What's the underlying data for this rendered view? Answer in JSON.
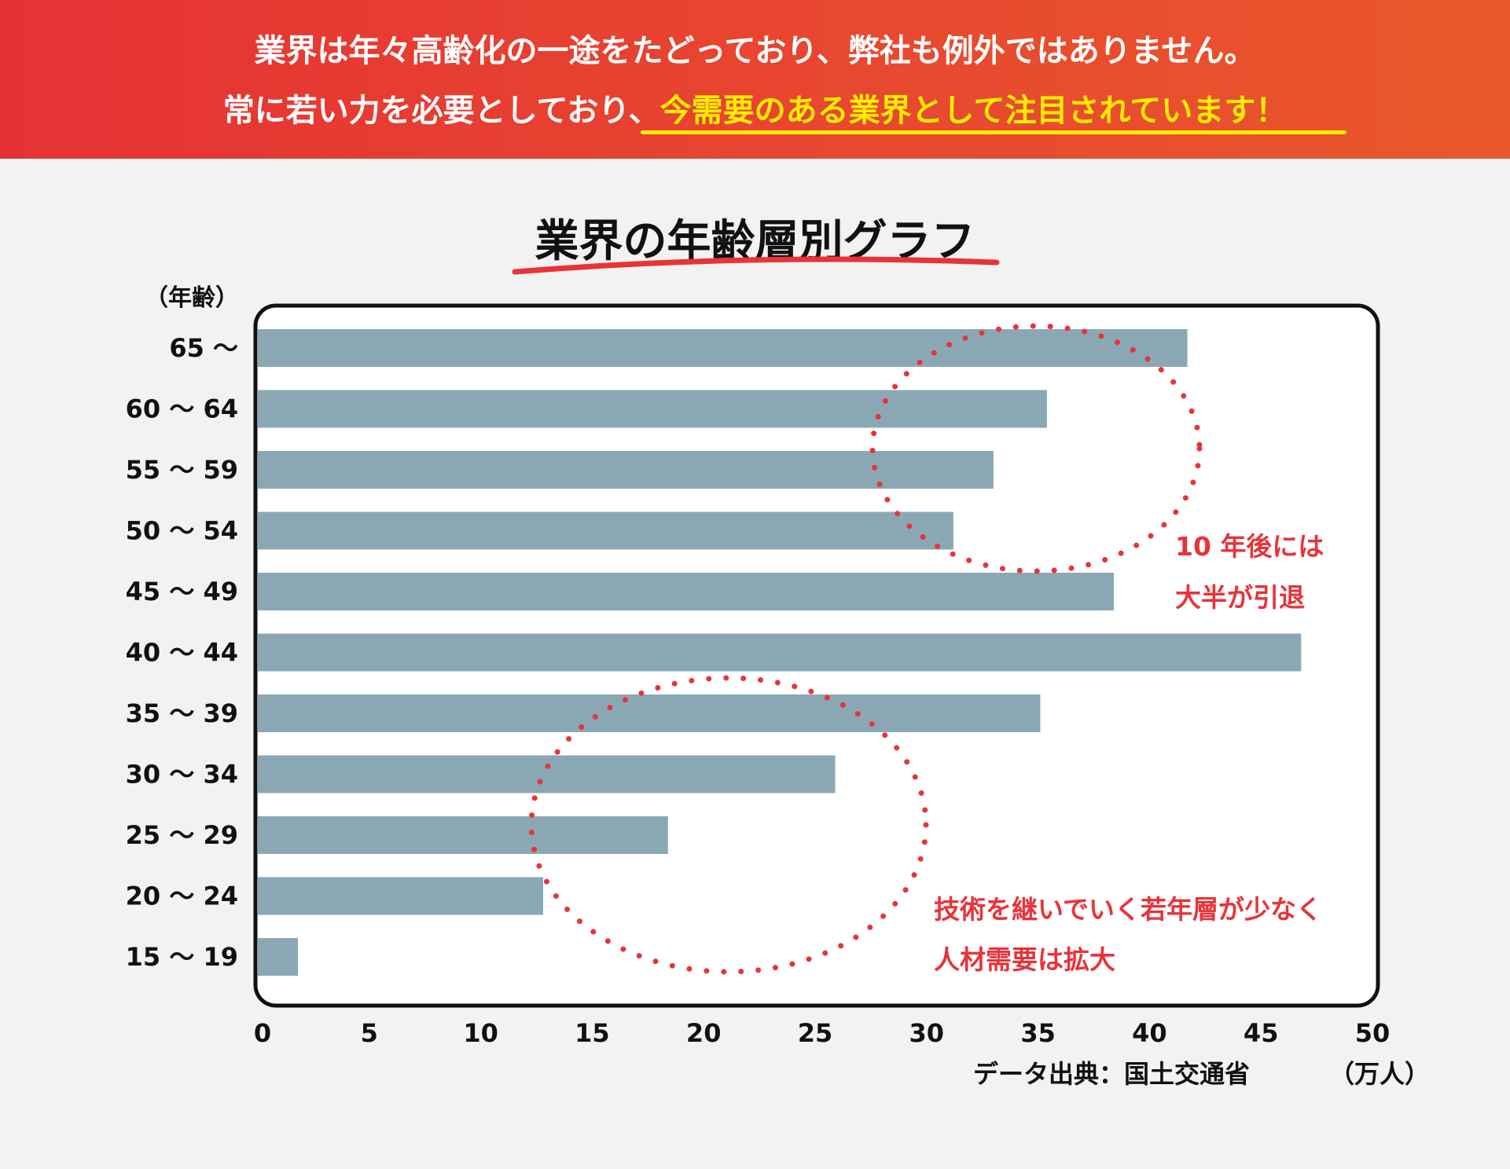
{
  "header": {
    "line1": "業界は年々高齢化の一途をたどっており、弊社も例外ではありません。",
    "line2_plain": "常に若い力を必要としており、",
    "line2_highlight": "今需要のある業界として注目されています！"
  },
  "colors": {
    "header_start": "#e63234",
    "header_end": "#e9582c",
    "highlight": "#ffec00",
    "bar": "#8aa8b4",
    "accent": "#e8333a"
  },
  "chart_data": {
    "type": "bar",
    "orientation": "horizontal",
    "title": "業界の年齢層別グラフ",
    "ylabel": "（年齢）",
    "xlabel": "（万人）",
    "xlim": [
      0,
      50
    ],
    "xticks": [
      "0",
      "5",
      "10",
      "15",
      "20",
      "25",
      "30",
      "35",
      "40",
      "45",
      "50"
    ],
    "categories": [
      "65 〜",
      "60 〜 64",
      "55 〜 59",
      "50 〜 54",
      "45 〜 49",
      "40 〜 44",
      "35 〜 39",
      "30 〜 34",
      "25 〜 29",
      "20 〜 24",
      "15 〜 19"
    ],
    "values": [
      41.7,
      35.4,
      33.0,
      31.2,
      38.4,
      46.8,
      35.1,
      25.9,
      18.4,
      12.8,
      1.8
    ],
    "source": "データ出典：国土交通省",
    "annotations": [
      {
        "lines": [
          "10 年後には",
          "大半が引退"
        ],
        "target": "50歳以上"
      },
      {
        "lines": [
          "技術を継いでいく若年層が少なく",
          "人材需要は拡大"
        ],
        "target": "15〜34歳"
      }
    ]
  }
}
